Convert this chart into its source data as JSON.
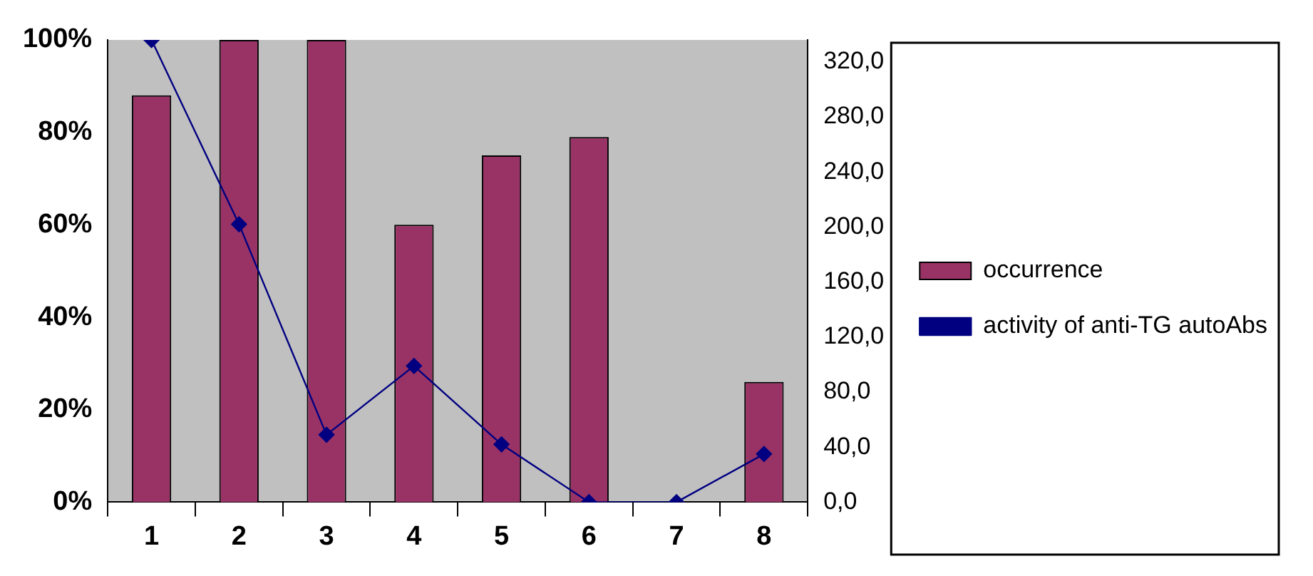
{
  "chart_data": {
    "type": "bar",
    "categories": [
      "1",
      "2",
      "3",
      "4",
      "5",
      "6",
      "7",
      "8"
    ],
    "series": [
      {
        "name": "occurrence",
        "color": "#993366",
        "values": [
          88,
          100,
          100,
          60,
          75,
          79,
          null,
          26
        ]
      },
      {
        "name": "activity of anti-TG autoAbs",
        "type": "line",
        "axis": "y2",
        "color": "#000080",
        "values": [
          336,
          202,
          49,
          99,
          42,
          0,
          0,
          35
        ]
      }
    ],
    "ylim": [
      0,
      100
    ],
    "yticks": [
      {
        "value": 0,
        "label": "0%"
      },
      {
        "value": 20,
        "label": "20%"
      },
      {
        "value": 40,
        "label": "40%"
      },
      {
        "value": 60,
        "label": "60%"
      },
      {
        "value": 80,
        "label": "80%"
      },
      {
        "value": 100,
        "label": "100%"
      }
    ],
    "y2lim": [
      0,
      336
    ],
    "y2ticks": [
      {
        "value": 0,
        "label": "0,0"
      },
      {
        "value": 40,
        "label": "40,0"
      },
      {
        "value": 80,
        "label": "80,0"
      },
      {
        "value": 120,
        "label": "120,0"
      },
      {
        "value": 160,
        "label": "160,0"
      },
      {
        "value": 200,
        "label": "200,0"
      },
      {
        "value": 240,
        "label": "240,0"
      },
      {
        "value": 280,
        "label": "280,0"
      },
      {
        "value": 320,
        "label": "320,0"
      }
    ],
    "grid": false,
    "legend": "right",
    "marker": "diamond",
    "line_style": "solid"
  }
}
